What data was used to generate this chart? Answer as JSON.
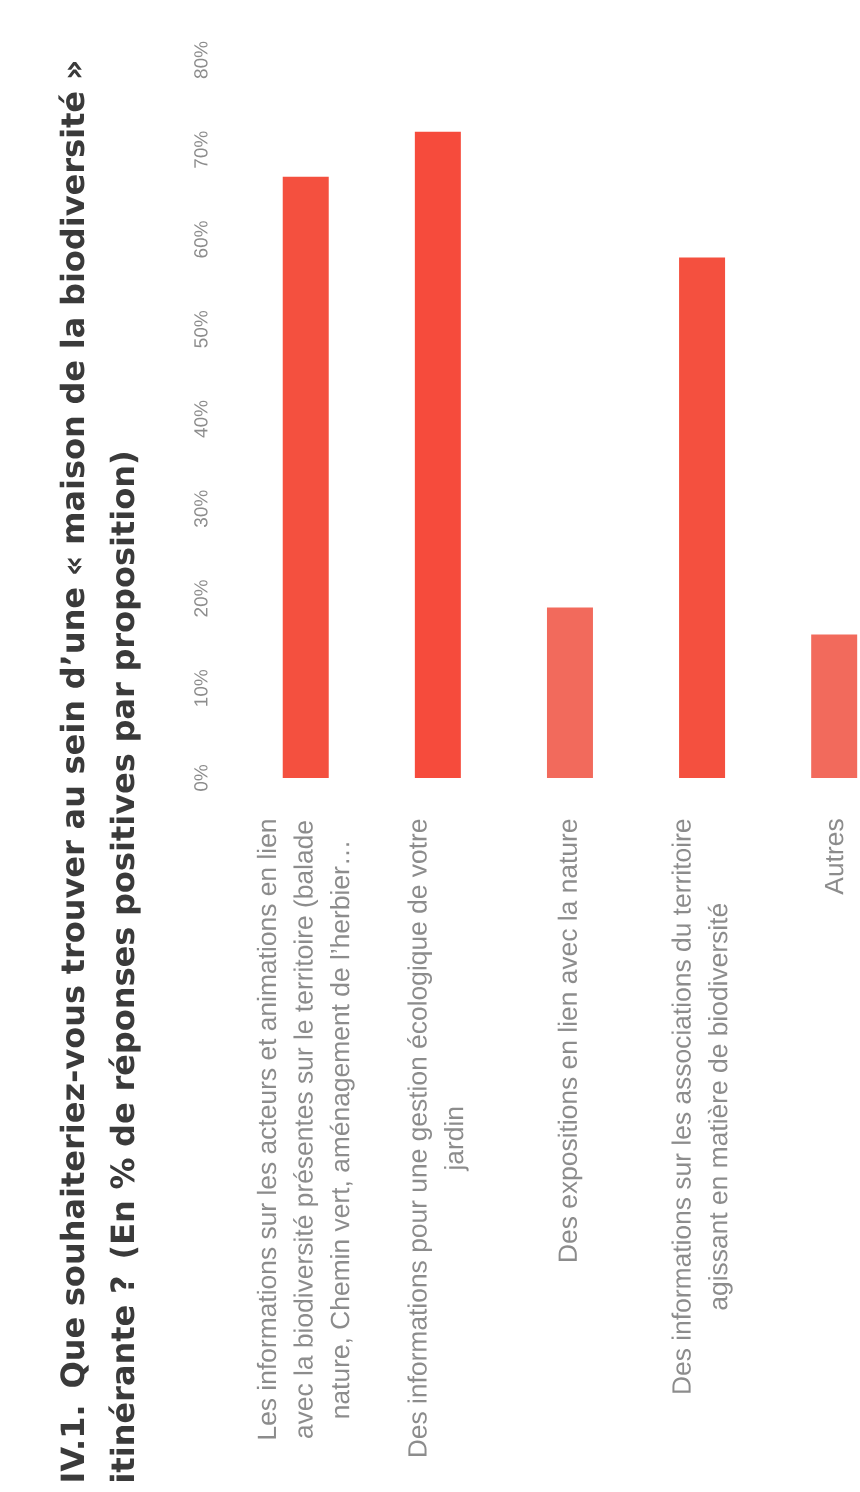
{
  "chart_data": {
    "type": "bar",
    "title": "IV.1. Que souhaiteriez-vous trouver au sein d’une « maison de la biodiversité » itinérante ?  (En % de réponses positives par proposition)",
    "categories": [
      "Les informations sur les acteurs et animations en lien avec la biodiversité présentes sur le territoire (balade nature, Chemin vert, aménagement de l’herbier…",
      "Des informations pour une gestion écologique de votre jardin",
      "Des expositions en lien avec la nature",
      "Des informations sur les associations du territoire agissant en matière de biodiversité",
      "Autres"
    ],
    "values": [
      67,
      72,
      19,
      58,
      16
    ],
    "colors": [
      "#f4503f",
      "#f64b3c",
      "#f26a5c",
      "#f4503f",
      "#f26a5c"
    ],
    "ylim": [
      0,
      80
    ],
    "yticks": [
      {
        "value": 0,
        "label": "0%"
      },
      {
        "value": 10,
        "label": "10%"
      },
      {
        "value": 20,
        "label": "20%"
      },
      {
        "value": 30,
        "label": "30%"
      },
      {
        "value": 40,
        "label": "40%"
      },
      {
        "value": 50,
        "label": "50%"
      },
      {
        "value": 60,
        "label": "60%"
      },
      {
        "value": 70,
        "label": "70%"
      },
      {
        "value": 80,
        "label": "80%"
      }
    ]
  }
}
